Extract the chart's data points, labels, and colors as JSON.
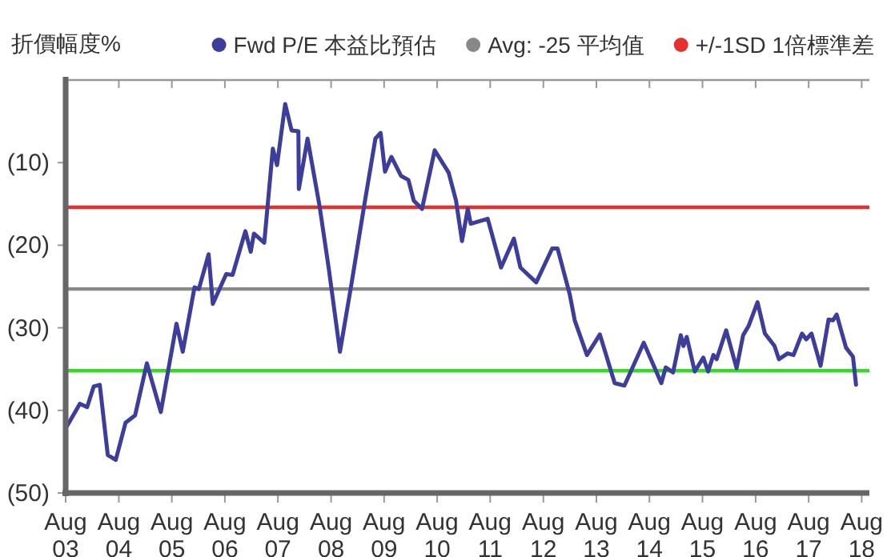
{
  "chart_data": {
    "type": "line",
    "ylabel": "折價幅度%",
    "legend": "top right",
    "x": [
      "2003-08-07",
      "2003-11-07",
      "2003-12-27",
      "2004-02-10",
      "2004-03-23",
      "2004-05-17",
      "2004-07-11",
      "2004-09-16",
      "2004-11-21",
      "2005-02-10",
      "2005-05-17",
      "2005-09-02",
      "2005-10-15",
      "2006-01-04",
      "2006-02-03",
      "2006-04-11",
      "2006-05-10",
      "2006-08-10",
      "2006-09-23",
      "2006-12-20",
      "2007-01-26",
      "2007-02-17",
      "2007-04-29",
      "2007-06-27",
      "2007-07-26",
      "2007-09-20",
      "2007-11-03",
      "2007-12-20",
      "2007-12-23",
      "2008-02-21",
      "2008-05-14",
      "2008-07-15",
      "2008-10-01",
      "2008-12-20",
      "2009-03-13",
      "2009-06-02",
      "2009-07-08",
      "2009-08-07",
      "2009-09-20",
      "2009-11-25",
      "2010-01-15",
      "2010-02-21",
      "2010-04-19",
      "2010-07-15",
      "2010-10-19",
      "2010-12-09",
      "2011-01-19",
      "2011-02-28",
      "2011-03-20",
      "2011-07-15",
      "2011-10-15",
      "2012-01-11",
      "2012-02-25",
      "2012-06-13",
      "2012-10-01",
      "2012-11-07",
      "2013-01-29",
      "2013-03-05",
      "2013-05-28",
      "2013-08-25",
      "2013-12-05",
      "2014-02-10",
      "2014-06-23",
      "2014-10-22",
      "2014-11-21",
      "2015-01-11",
      "2015-03-05",
      "2015-03-23",
      "2015-04-15",
      "2015-06-09",
      "2015-08-07",
      "2015-09-09",
      "2015-10-15",
      "2015-11-07",
      "2016-01-11",
      "2016-03-23",
      "2016-05-07",
      "2016-06-13",
      "2016-08-14",
      "2016-10-04",
      "2016-12-09",
      "2017-01-08",
      "2017-03-09",
      "2017-04-19",
      "2017-06-16",
      "2017-07-15",
      "2017-08-21",
      "2017-10-22",
      "2017-12-16",
      "2018-01-15",
      "2018-02-10",
      "2018-04-15",
      "2018-06-02",
      "2018-06-23"
    ],
    "series": [
      {
        "name": "Fwd P/E 本益比預估",
        "color": "#3d3d9c",
        "values": [
          -42.0,
          -39.2,
          -39.6,
          -37.1,
          -36.9,
          -45.4,
          -46.0,
          -41.5,
          -40.6,
          -34.3,
          -40.2,
          -29.5,
          -32.9,
          -25.1,
          -25.3,
          -21.1,
          -27.1,
          -23.5,
          -23.6,
          -18.3,
          -20.8,
          -18.6,
          -19.7,
          -8.3,
          -10.3,
          -2.9,
          -6.1,
          -6.2,
          -13.2,
          -7.1,
          -15.3,
          -22.7,
          -32.9,
          -24.6,
          -15.6,
          -7.1,
          -6.4,
          -11.1,
          -9.3,
          -11.6,
          -12.1,
          -14.6,
          -15.6,
          -8.5,
          -11.2,
          -14.6,
          -19.5,
          -15.6,
          -17.4,
          -16.8,
          -22.7,
          -19.2,
          -22.7,
          -24.5,
          -20.4,
          -20.4,
          -25.9,
          -29.1,
          -33.3,
          -30.8,
          -36.7,
          -37.0,
          -31.8,
          -36.7,
          -34.8,
          -35.4,
          -30.9,
          -32.2,
          -31.1,
          -35.3,
          -33.6,
          -35.3,
          -33.3,
          -33.8,
          -30.3,
          -34.9,
          -30.9,
          -29.8,
          -26.9,
          -30.7,
          -32.2,
          -33.8,
          -33.1,
          -33.3,
          -30.7,
          -31.4,
          -30.7,
          -34.6,
          -29.0,
          -29.1,
          -28.4,
          -32.4,
          -33.5,
          -36.9
        ]
      }
    ],
    "ref_lines": [
      {
        "axis": "y",
        "value": -25.3,
        "label": "Avg: -25 平均值",
        "color": "#888888"
      },
      {
        "axis": "y",
        "value": -15.4,
        "label": "+/-1SD 1倍標準差",
        "color": "#e53030"
      },
      {
        "axis": "y",
        "value": -35.2,
        "color": "#33dd22"
      }
    ],
    "xlim": [
      "2003-08-01",
      "2018-09-23"
    ],
    "xticks": [
      {
        "value": "2003-08-01",
        "label": "Aug 03"
      },
      {
        "value": "2004-08-01",
        "label": "Aug 04"
      },
      {
        "value": "2005-08-01",
        "label": "Aug 05"
      },
      {
        "value": "2006-08-01",
        "label": "Aug 06"
      },
      {
        "value": "2007-08-01",
        "label": "Aug 07"
      },
      {
        "value": "2008-08-01",
        "label": "Aug 08"
      },
      {
        "value": "2009-08-01",
        "label": "Aug 09"
      },
      {
        "value": "2010-08-01",
        "label": "Aug 10"
      },
      {
        "value": "2011-08-01",
        "label": "Aug 11"
      },
      {
        "value": "2012-08-01",
        "label": "Aug 12"
      },
      {
        "value": "2013-08-01",
        "label": "Aug 13"
      },
      {
        "value": "2014-08-01",
        "label": "Aug 14"
      },
      {
        "value": "2015-08-01",
        "label": "Aug 15"
      },
      {
        "value": "2016-08-01",
        "label": "Aug 16"
      },
      {
        "value": "2017-08-01",
        "label": "Aug 17"
      },
      {
        "value": "2018-08-01",
        "label": "Aug 18"
      }
    ],
    "ylim": [
      -50,
      0
    ],
    "yticks": [
      {
        "value": -10,
        "label": "(10)"
      },
      {
        "value": -20,
        "label": "(20)"
      },
      {
        "value": -30,
        "label": "(30)"
      },
      {
        "value": -40,
        "label": "(40)"
      },
      {
        "value": -50,
        "label": "(50)"
      }
    ],
    "marker": "none",
    "line_style": "solid",
    "grid": false
  }
}
